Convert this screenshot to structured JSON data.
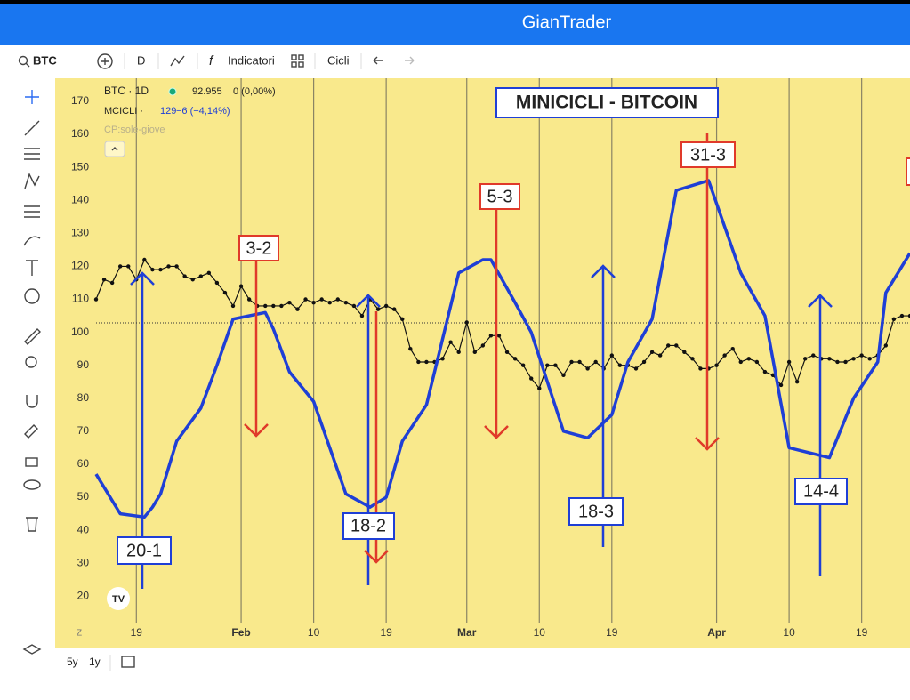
{
  "app": {
    "title": "GianTrader",
    "toolbar": {
      "symbol": "BTC",
      "interval": "D",
      "indicators": "Indicatori",
      "cycles": "Cicli"
    },
    "legend": {
      "symbol": "BTC · 1D",
      "price": "92.955",
      "change": "0 (0,00%)",
      "indicator": "MCICLI ·",
      "indicator_value": "129",
      "indicator_change": "−6 (−4,14%)",
      "overlay": "CP:sole-giove"
    },
    "ranges": [
      "5y",
      "1y"
    ],
    "axis_mode": "Z"
  },
  "chart_data": {
    "type": "line",
    "title": "MINICICLI - BITCOIN",
    "xlim": [
      14,
      115
    ],
    "ylim": [
      12,
      177
    ],
    "xticks": [
      {
        "value": 19,
        "label": "19"
      },
      {
        "value": 32,
        "label": "Feb"
      },
      {
        "value": 41,
        "label": "10"
      },
      {
        "value": 50,
        "label": "19"
      },
      {
        "value": 60,
        "label": "Mar"
      },
      {
        "value": 69,
        "label": "10"
      },
      {
        "value": 78,
        "label": "19"
      },
      {
        "value": 91,
        "label": "Apr"
      },
      {
        "value": 100,
        "label": "10"
      },
      {
        "value": 109,
        "label": "19"
      }
    ],
    "yticks": [
      20,
      30,
      40,
      50,
      60,
      70,
      80,
      90,
      100,
      110,
      120,
      130,
      140,
      150,
      160,
      170
    ],
    "grid": true,
    "series": [
      {
        "name": "BTC",
        "color": "#111111",
        "markers": true,
        "x": [
          14,
          15,
          16,
          17,
          18,
          19,
          20,
          21,
          22,
          23,
          24,
          25,
          26,
          27,
          28,
          29,
          30,
          31,
          32,
          33,
          34,
          35,
          36,
          37,
          38,
          39,
          40,
          41,
          42,
          43,
          44,
          45,
          46,
          47,
          48,
          49,
          50,
          51,
          52,
          53,
          54,
          55,
          56,
          57,
          58,
          59,
          60,
          61,
          62,
          63,
          64,
          65,
          66,
          67,
          68,
          69,
          70,
          71,
          72,
          73,
          74,
          75,
          76,
          77,
          78,
          79,
          80,
          81,
          82,
          83,
          84,
          85,
          86,
          87,
          88,
          89,
          90,
          91,
          92,
          93,
          94,
          95,
          96,
          97,
          98,
          99,
          100,
          101,
          102,
          103,
          104,
          105,
          106,
          107,
          108,
          109,
          110,
          111,
          112,
          113,
          114,
          115
        ],
        "values": [
          110,
          116,
          115,
          120,
          120,
          116,
          122,
          119,
          119,
          120,
          120,
          117,
          116,
          117,
          118,
          115,
          112,
          108,
          114,
          110,
          108,
          108,
          108,
          108,
          109,
          107,
          110,
          109,
          110,
          109,
          110,
          109,
          108,
          105,
          110,
          107,
          108,
          107,
          104,
          95,
          91,
          91,
          91,
          92,
          97,
          94,
          103,
          94,
          96,
          99,
          99,
          94,
          92,
          90,
          86,
          83,
          90,
          90,
          87,
          91,
          91,
          89,
          91,
          89,
          93,
          90,
          90,
          89,
          91,
          94,
          93,
          96,
          96,
          94,
          92,
          89,
          89,
          90,
          93,
          95,
          91,
          92,
          91,
          88,
          87,
          84,
          91,
          85,
          92,
          93,
          92,
          92,
          91,
          91,
          92,
          93,
          92,
          93,
          96,
          104,
          105,
          105
        ]
      },
      {
        "name": "MCICLI",
        "color": "#1f3fd6",
        "markers": false,
        "x": [
          14,
          17,
          20,
          21,
          22,
          24,
          27,
          29,
          31,
          35,
          36,
          38,
          41,
          45,
          48,
          50,
          52,
          55,
          59,
          62,
          63,
          66,
          68,
          72,
          75,
          78,
          80,
          83,
          86,
          90,
          91,
          94,
          97,
          100,
          105,
          108,
          111,
          112,
          115
        ],
        "values": [
          57,
          45,
          44,
          47,
          51,
          67,
          77,
          90,
          104,
          106,
          101,
          88,
          79,
          51,
          47,
          50,
          67,
          78,
          118,
          122,
          122,
          109,
          100,
          70,
          68,
          75,
          91,
          104,
          143,
          146,
          139,
          118,
          105,
          65,
          62,
          80,
          91,
          112,
          124
        ]
      }
    ],
    "annotations": [
      "20-1",
      "3-2",
      "18-2",
      "5-3",
      "18-3",
      "31-3",
      "14-4"
    ]
  }
}
